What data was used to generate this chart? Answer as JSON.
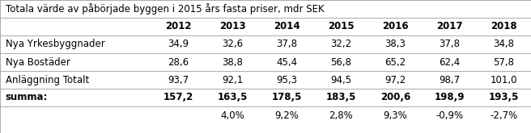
{
  "title": "Totala värde av påbörjade byggen i 2015 års fasta priser, mdr SEK",
  "years": [
    "2012",
    "2013",
    "2014",
    "2015",
    "2016",
    "2017",
    "2018"
  ],
  "rows": [
    {
      "label": "Nya Yrkesbyggnader",
      "values": [
        "34,9",
        "32,6",
        "37,8",
        "32,2",
        "38,3",
        "37,8",
        "34,8"
      ]
    },
    {
      "label": "Nya Bostäder",
      "values": [
        "28,6",
        "38,8",
        "45,4",
        "56,8",
        "65,2",
        "62,4",
        "57,8"
      ]
    },
    {
      "label": "Anläggning Totalt",
      "values": [
        "93,7",
        "92,1",
        "95,3",
        "94,5",
        "97,2",
        "98,7",
        "101,0"
      ]
    }
  ],
  "summa_label": "summa:",
  "summa_values": [
    "157,2",
    "163,5",
    "178,5",
    "183,5",
    "200,6",
    "198,9",
    "193,5"
  ],
  "pct_values": [
    "",
    "4,0%",
    "9,2%",
    "2,8%",
    "9,3%",
    "-0,9%",
    "-2,7%"
  ],
  "bg_color": "#ffffff",
  "grid_color": "#aaaaaa",
  "text_color": "#000000",
  "font_size": 8.5,
  "line_lw": 0.7
}
